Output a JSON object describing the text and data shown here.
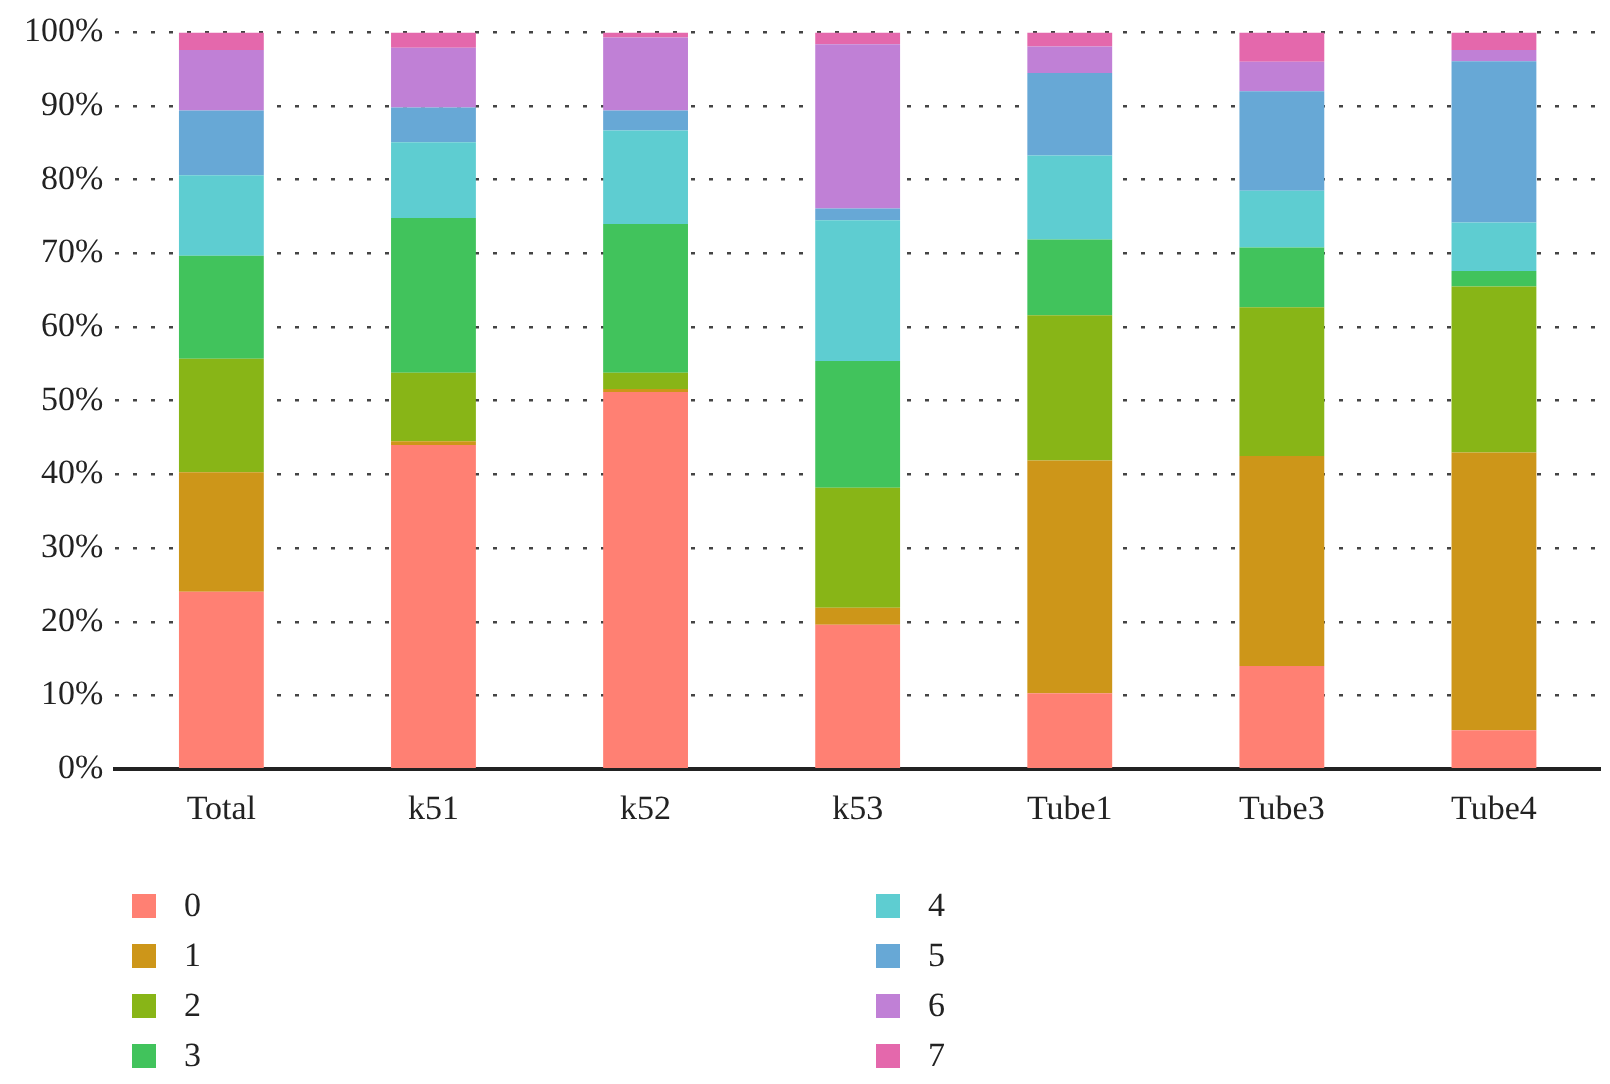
{
  "chart_data": {
    "type": "bar",
    "stacked": true,
    "categories": [
      "Total",
      "k51",
      "k52",
      "k53",
      "Tube1",
      "Tube3",
      "Tube4"
    ],
    "series": [
      {
        "name": "0",
        "color": "#ff8073",
        "values": [
          24.1,
          44.0,
          51.2,
          19.6,
          10.3,
          14.0,
          5.3
        ]
      },
      {
        "name": "1",
        "color": "#cd9619",
        "values": [
          16.2,
          0.5,
          0.4,
          2.3,
          31.6,
          28.5,
          37.7
        ]
      },
      {
        "name": "2",
        "color": "#88b517",
        "values": [
          15.4,
          9.3,
          2.2,
          16.3,
          19.7,
          20.2,
          22.5
        ]
      },
      {
        "name": "3",
        "color": "#41c35c",
        "values": [
          14.0,
          21.0,
          20.2,
          17.2,
          10.3,
          8.1,
          2.1
        ]
      },
      {
        "name": "4",
        "color": "#5ecdd1",
        "values": [
          10.9,
          10.3,
          12.7,
          19.1,
          11.4,
          7.7,
          6.6
        ]
      },
      {
        "name": "5",
        "color": "#67a8d6",
        "values": [
          8.8,
          4.7,
          2.7,
          1.6,
          11.2,
          13.5,
          21.9
        ]
      },
      {
        "name": "6",
        "color": "#c080d6",
        "values": [
          8.2,
          8.1,
          9.9,
          22.3,
          3.6,
          4.0,
          1.5
        ]
      },
      {
        "name": "7",
        "color": "#e468ac",
        "values": [
          2.4,
          2.1,
          0.7,
          1.6,
          1.9,
          4.0,
          2.4
        ]
      }
    ],
    "ylim": [
      0,
      100
    ],
    "yticks": [
      {
        "value": 0,
        "label": "0%"
      },
      {
        "value": 10,
        "label": "10%"
      },
      {
        "value": 20,
        "label": "20%"
      },
      {
        "value": 30,
        "label": "30%"
      },
      {
        "value": 40,
        "label": "40%"
      },
      {
        "value": 50,
        "label": "50%"
      },
      {
        "value": 60,
        "label": "60%"
      },
      {
        "value": 70,
        "label": "70%"
      },
      {
        "value": 80,
        "label": "80%"
      },
      {
        "value": 90,
        "label": "90%"
      },
      {
        "value": 100,
        "label": "100%"
      }
    ],
    "grid": "y",
    "legend": "bottom"
  }
}
